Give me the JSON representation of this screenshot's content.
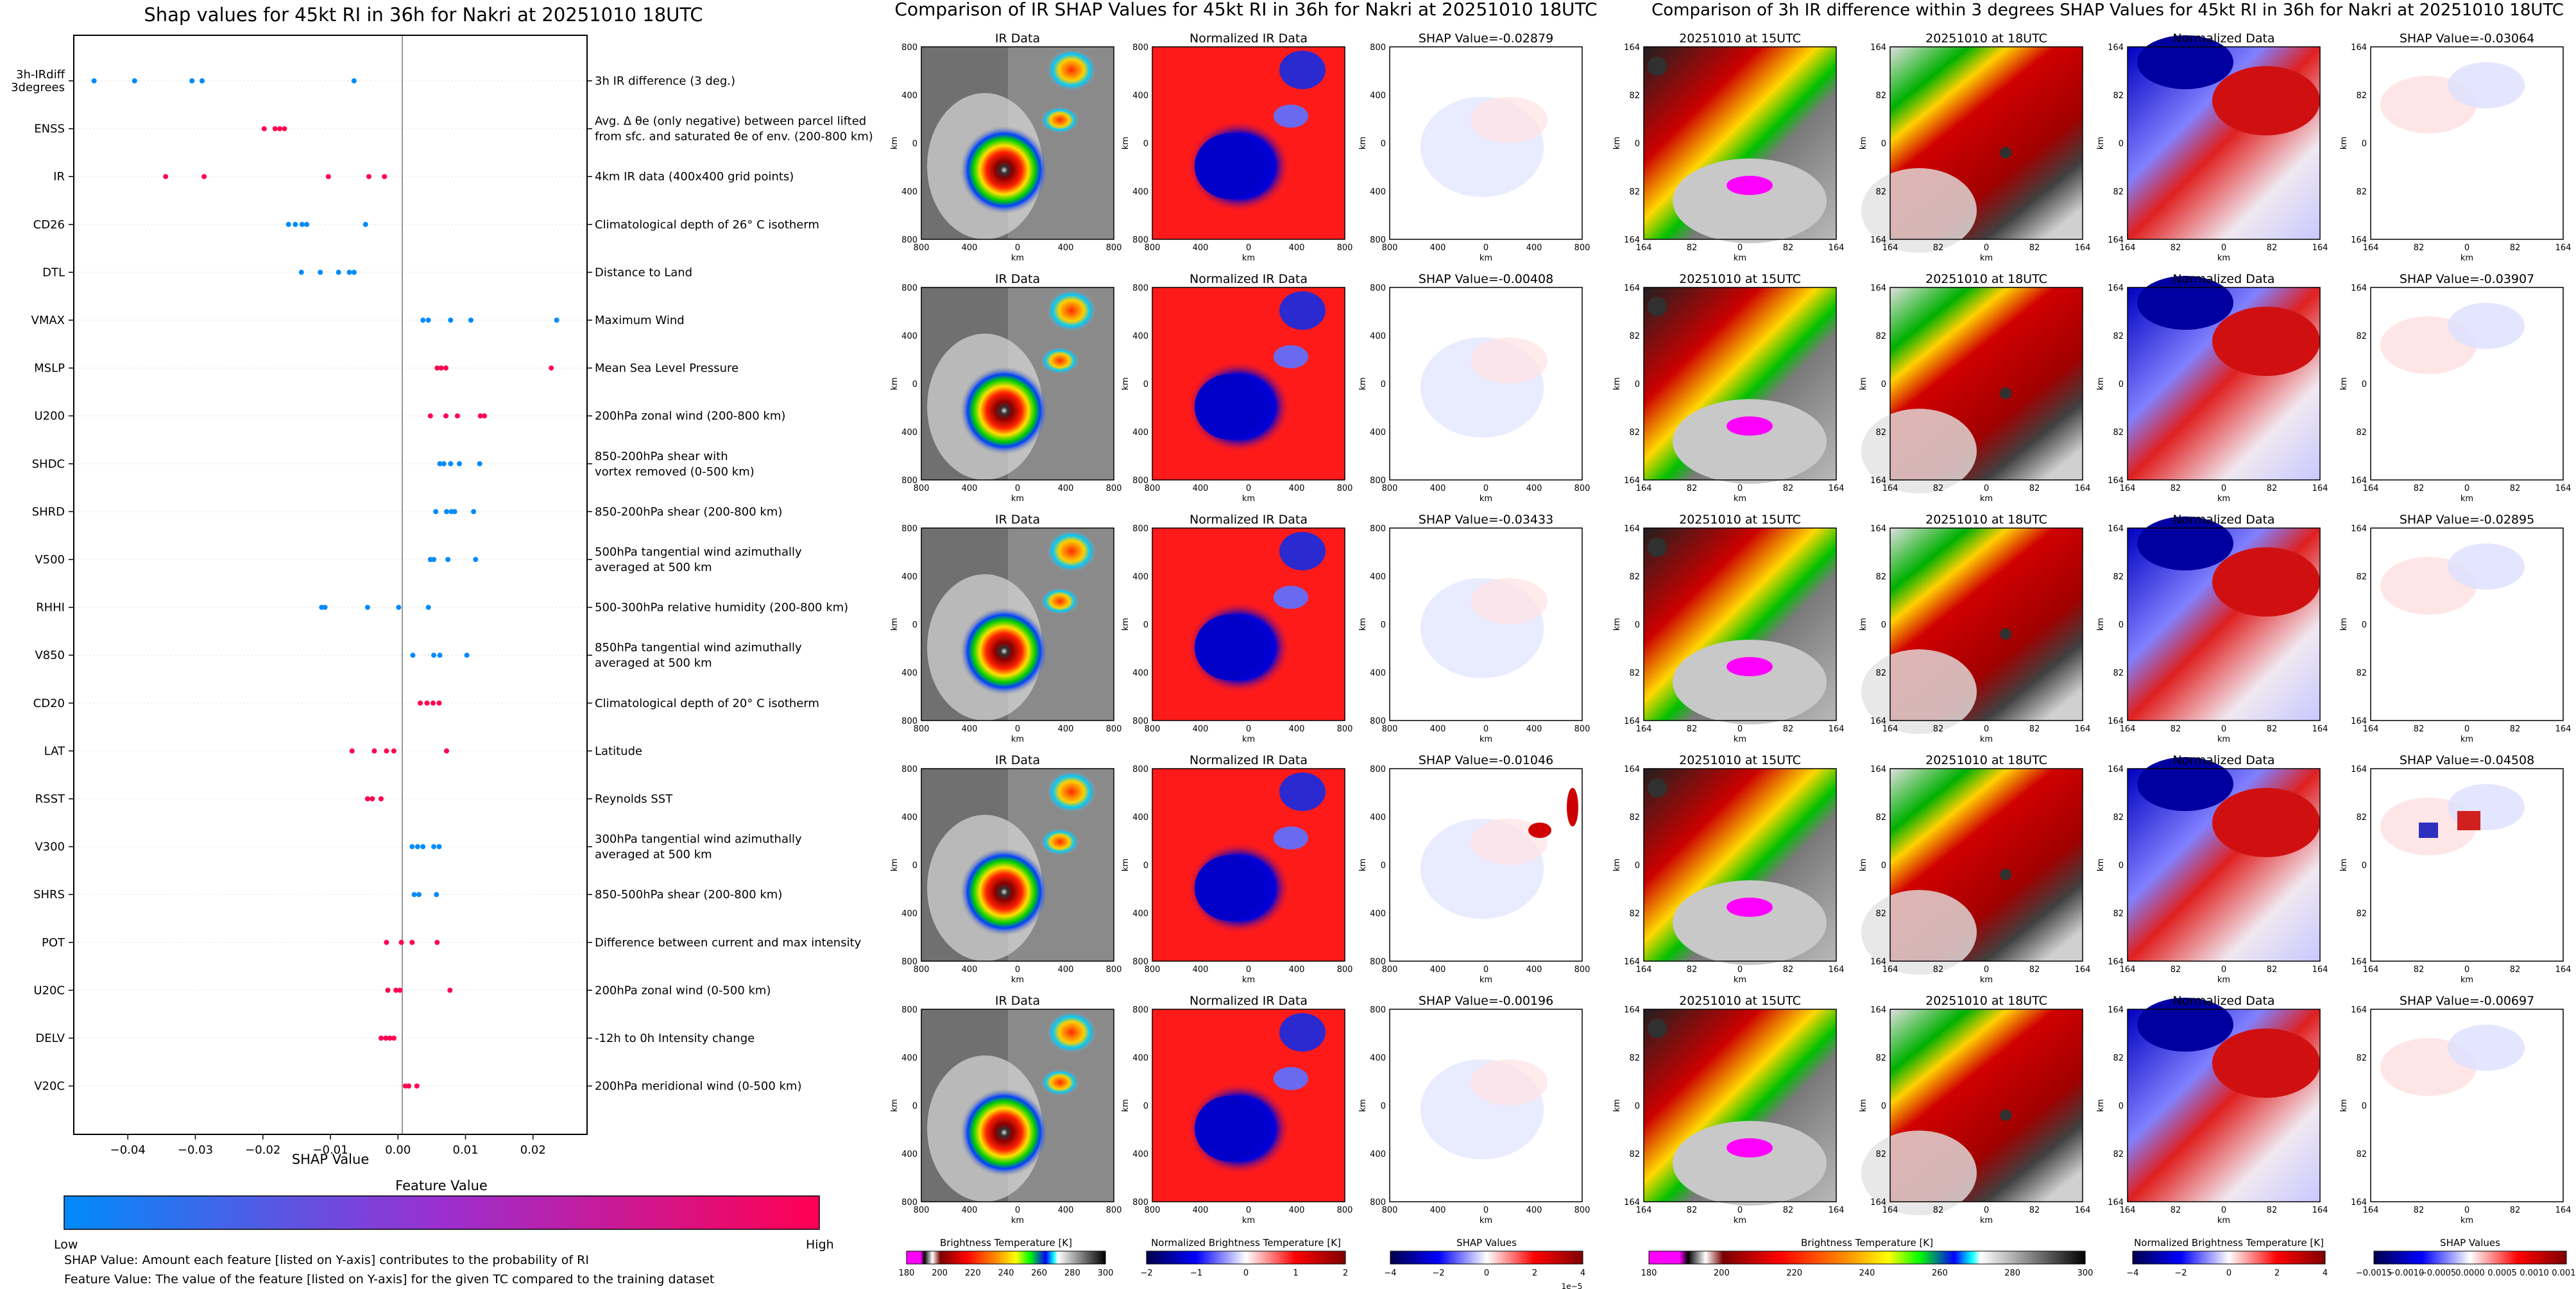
{
  "colors": {
    "low": "#1e88e5",
    "high": "#ff0052",
    "blue_neg": "#008bfb",
    "pink_pos": "#ff0051",
    "ir_gray": "#7d7d7d",
    "norm_red": "#ff1a1a",
    "norm_blue": "#0000c8"
  },
  "left": {
    "title": "Shap values for 45kt RI in 36h for Nakri at 20251010 18UTC",
    "xlabel": "SHAP Value",
    "colorbar_title": "Feature Value",
    "colorbar_low": "Low",
    "colorbar_high": "High",
    "note1": "SHAP Value: Amount each feature [listed on Y-axis] contributes to the probability of RI",
    "note2": "Feature Value: The value of the feature [listed on Y-axis] for the given TC compared to the training dataset"
  },
  "mid": {
    "title": "Comparison of IR SHAP Values for 45kt RI in 36h for Nakri at 20251010 18UTC",
    "col_titles": [
      "IR Data",
      "Normalized IR Data"
    ],
    "shap_titles": [
      "SHAP Value=-0.02879",
      "SHAP Value=-0.00408",
      "SHAP Value=-0.03433",
      "SHAP Value=-0.01046",
      "SHAP Value=-0.00196"
    ],
    "ticks": [
      "800",
      "400",
      "0",
      "400",
      "800"
    ],
    "unit": "km",
    "cb1_label": "Brightness Temperature [K]",
    "cb1_ticks": [
      "180",
      "200",
      "220",
      "240",
      "260",
      "280",
      "300"
    ],
    "cb2_label": "Normalized Brightness Temperature [K]",
    "cb2_ticks": [
      "−2",
      "−1",
      "0",
      "1",
      "2"
    ],
    "cb3_label": "SHAP Values",
    "cb3_ticks": [
      "−4",
      "−2",
      "0",
      "2",
      "4"
    ],
    "cb3_exp": "1e−5"
  },
  "right": {
    "title": "Comparison of 3h IR difference within 3 degrees SHAP Values for 45kt RI in 36h for Nakri at 20251010 18UTC",
    "col_titles": [
      "20251010 at 15UTC",
      "20251010 at 18UTC",
      "Normalized Data"
    ],
    "shap_titles": [
      "SHAP Value=-0.03064",
      "SHAP Value=-0.03907",
      "SHAP Value=-0.02895",
      "SHAP Value=-0.04508",
      "SHAP Value=-0.00697"
    ],
    "ticks": [
      "164",
      "82",
      "0",
      "82",
      "164"
    ],
    "unit": "km",
    "cb1_label": "Brightness Temperature [K]",
    "cb1_ticks": [
      "180",
      "200",
      "220",
      "240",
      "260",
      "280",
      "300"
    ],
    "cb2_label": "Normalized Brightness Temperature [K]",
    "cb2_ticks": [
      "−4",
      "−2",
      "0",
      "2",
      "4"
    ],
    "cb3_label": "SHAP Values",
    "cb3_ticks": [
      "−0.0015",
      "−0.0010",
      "−0.0005",
      "0.0000",
      "0.0005",
      "0.0010",
      "0.0015"
    ]
  },
  "chart_data": {
    "type": "scatter",
    "title": "Shap values for 45kt RI in 36h for Nakri at 20251010 18UTC",
    "xlabel": "SHAP Value",
    "xlim": [
      -0.048,
      0.028
    ],
    "xticks": [
      -0.04,
      -0.03,
      -0.02,
      -0.01,
      0.0,
      0.01,
      0.02
    ],
    "xtick_labels": [
      "−0.04",
      "−0.03",
      "−0.02",
      "−0.01",
      "0.00",
      "0.01",
      "0.02"
    ],
    "features": [
      {
        "code": "3h-IRdiff\n3degrees",
        "desc": "3h IR difference (3 deg.)",
        "color": "blue",
        "values": [
          -0.045,
          -0.039,
          -0.0305,
          -0.029,
          -0.0065
        ]
      },
      {
        "code": "ENSS",
        "desc": "Avg. Δ θe (only negative) between parcel lifted\nfrom sfc. and saturated θe of env. (200-800 km)",
        "color": "pink",
        "values": [
          -0.0198,
          -0.0182,
          -0.0175,
          -0.0168
        ]
      },
      {
        "code": "IR",
        "desc": "4km IR data (400x400 grid points)",
        "color": "pink",
        "values": [
          -0.0344,
          -0.0287,
          -0.0103,
          -0.0043,
          -0.002
        ]
      },
      {
        "code": "CD26",
        "desc": "Climatological depth of 26° C isotherm",
        "color": "blue",
        "values": [
          -0.0162,
          -0.0152,
          -0.0142,
          -0.0135,
          -0.0048
        ]
      },
      {
        "code": "DTL",
        "desc": "Distance to Land",
        "color": "blue",
        "values": [
          -0.0143,
          -0.0115,
          -0.0088,
          -0.0072,
          -0.0065
        ]
      },
      {
        "code": "VMAX",
        "desc": "Maximum Wind",
        "color": "blue",
        "values": [
          0.0037,
          0.0045,
          0.0078,
          0.0108,
          0.0235
        ]
      },
      {
        "code": "MSLP",
        "desc": "Mean Sea Level Pressure",
        "color": "pink",
        "values": [
          0.0058,
          0.0064,
          0.0071,
          0.0227
        ]
      },
      {
        "code": "U200",
        "desc": "200hPa zonal wind (200-800 km)",
        "color": "pink",
        "values": [
          0.0048,
          0.0071,
          0.0088,
          0.0122,
          0.0128
        ]
      },
      {
        "code": "SHDC",
        "desc": "850-200hPa shear with\nvortex removed (0-500 km)",
        "color": "blue",
        "values": [
          0.0062,
          0.0068,
          0.0078,
          0.0091,
          0.0121
        ]
      },
      {
        "code": "SHRD",
        "desc": "850-200hPa shear (200-800 km)",
        "color": "blue",
        "values": [
          0.0056,
          0.0072,
          0.0079,
          0.0084,
          0.0112
        ]
      },
      {
        "code": "V500",
        "desc": "500hPa tangential wind azimuthally\naveraged at 500 km",
        "color": "blue",
        "values": [
          0.0048,
          0.0053,
          0.0074,
          0.0115
        ]
      },
      {
        "code": "RHHI",
        "desc": "500-300hPa relative humidity (200-800 km)",
        "color": "blue",
        "values": [
          -0.0113,
          -0.0108,
          -0.0045,
          0.0001,
          0.0045
        ]
      },
      {
        "code": "V850",
        "desc": "850hPa tangential wind azimuthally\naveraged at 500 km",
        "color": "blue",
        "values": [
          0.0022,
          0.0053,
          0.0062,
          0.0102
        ]
      },
      {
        "code": "CD20",
        "desc": "Climatological depth of 20° C isotherm",
        "color": "pink",
        "values": [
          0.0033,
          0.0043,
          0.0052,
          0.0061
        ]
      },
      {
        "code": "LAT",
        "desc": "Latitude",
        "color": "pink",
        "values": [
          -0.0068,
          -0.0035,
          -0.0017,
          -0.0006,
          0.0072
        ]
      },
      {
        "code": "RSST",
        "desc": "Reynolds SST",
        "color": "pink",
        "values": [
          -0.0045,
          -0.0038,
          -0.0025
        ]
      },
      {
        "code": "V300",
        "desc": "300hPa tangential wind azimuthally\naveraged at 500 km",
        "color": "blue",
        "values": [
          0.0021,
          0.0029,
          0.0037,
          0.0053,
          0.0061
        ]
      },
      {
        "code": "SHRS",
        "desc": "850-500hPa shear (200-800 km)",
        "color": "blue",
        "values": [
          0.0024,
          0.0031,
          0.0057
        ]
      },
      {
        "code": "POT",
        "desc": "Difference between current and max intensity",
        "color": "pink",
        "values": [
          -0.0017,
          0.0005,
          0.0021,
          0.0058
        ]
      },
      {
        "code": "U20C",
        "desc": "200hPa zonal wind (0-500 km)",
        "color": "pink",
        "values": [
          -0.0015,
          -0.0003,
          0.0003,
          0.0077
        ]
      },
      {
        "code": "DELV",
        "desc": "-12h to 0h Intensity change",
        "color": "pink",
        "values": [
          -0.0025,
          -0.0018,
          -0.0012,
          -0.0006
        ]
      },
      {
        "code": "V20C",
        "desc": "200hPa meridional wind (0-500 km)",
        "color": "pink",
        "values": [
          0.0011,
          0.0016,
          0.0028
        ]
      }
    ]
  }
}
